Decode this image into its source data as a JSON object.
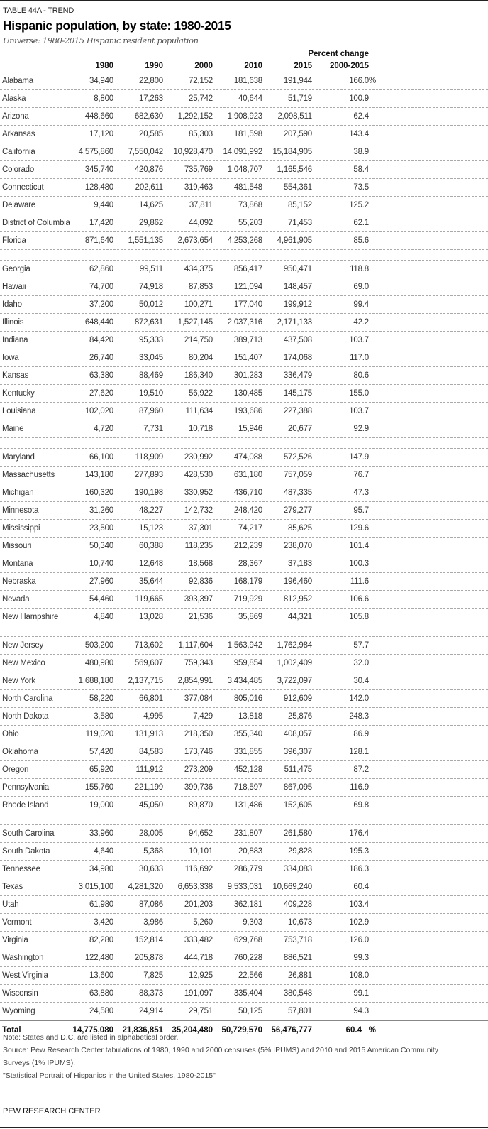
{
  "header": {
    "label": "TABLE 44A - TREND",
    "title": "Hispanic population, by state: 1980-2015",
    "subtitle": "Universe: 1980-2015 Hispanic resident population"
  },
  "columns": {
    "state": "",
    "years": [
      "1980",
      "1990",
      "2000",
      "2010",
      "2015"
    ],
    "pct_line1": "Percent change",
    "pct_line2": "2000-2015",
    "pct_unit": "%"
  },
  "groups": [
    [
      [
        "Alabama",
        "34,940",
        "22,800",
        "72,152",
        "181,638",
        "191,944",
        "166.0"
      ],
      [
        "Alaska",
        "8,800",
        "17,263",
        "25,742",
        "40,644",
        "51,719",
        "100.9"
      ],
      [
        "Arizona",
        "448,660",
        "682,630",
        "1,292,152",
        "1,908,923",
        "2,098,511",
        "62.4"
      ],
      [
        "Arkansas",
        "17,120",
        "20,585",
        "85,303",
        "181,598",
        "207,590",
        "143.4"
      ],
      [
        "California",
        "4,575,860",
        "7,550,042",
        "10,928,470",
        "14,091,992",
        "15,184,905",
        "38.9"
      ],
      [
        "Colorado",
        "345,740",
        "420,876",
        "735,769",
        "1,048,707",
        "1,165,546",
        "58.4"
      ],
      [
        "Connecticut",
        "128,480",
        "202,611",
        "319,463",
        "481,548",
        "554,361",
        "73.5"
      ],
      [
        "Delaware",
        "9,440",
        "14,625",
        "37,811",
        "73,868",
        "85,152",
        "125.2"
      ],
      [
        "District of Columbia",
        "17,420",
        "29,862",
        "44,092",
        "55,203",
        "71,453",
        "62.1"
      ],
      [
        "Florida",
        "871,640",
        "1,551,135",
        "2,673,654",
        "4,253,268",
        "4,961,905",
        "85.6"
      ]
    ],
    [
      [
        "Georgia",
        "62,860",
        "99,511",
        "434,375",
        "856,417",
        "950,471",
        "118.8"
      ],
      [
        "Hawaii",
        "74,700",
        "74,918",
        "87,853",
        "121,094",
        "148,457",
        "69.0"
      ],
      [
        "Idaho",
        "37,200",
        "50,012",
        "100,271",
        "177,040",
        "199,912",
        "99.4"
      ],
      [
        "Illinois",
        "648,440",
        "872,631",
        "1,527,145",
        "2,037,316",
        "2,171,133",
        "42.2"
      ],
      [
        "Indiana",
        "84,420",
        "95,333",
        "214,750",
        "389,713",
        "437,508",
        "103.7"
      ],
      [
        "Iowa",
        "26,740",
        "33,045",
        "80,204",
        "151,407",
        "174,068",
        "117.0"
      ],
      [
        "Kansas",
        "63,380",
        "88,469",
        "186,340",
        "301,283",
        "336,479",
        "80.6"
      ],
      [
        "Kentucky",
        "27,620",
        "19,510",
        "56,922",
        "130,485",
        "145,175",
        "155.0"
      ],
      [
        "Louisiana",
        "102,020",
        "87,960",
        "111,634",
        "193,686",
        "227,388",
        "103.7"
      ],
      [
        "Maine",
        "4,720",
        "7,731",
        "10,718",
        "15,946",
        "20,677",
        "92.9"
      ]
    ],
    [
      [
        "Maryland",
        "66,100",
        "118,909",
        "230,992",
        "474,088",
        "572,526",
        "147.9"
      ],
      [
        "Massachusetts",
        "143,180",
        "277,893",
        "428,530",
        "631,180",
        "757,059",
        "76.7"
      ],
      [
        "Michigan",
        "160,320",
        "190,198",
        "330,952",
        "436,710",
        "487,335",
        "47.3"
      ],
      [
        "Minnesota",
        "31,260",
        "48,227",
        "142,732",
        "248,420",
        "279,277",
        "95.7"
      ],
      [
        "Mississippi",
        "23,500",
        "15,123",
        "37,301",
        "74,217",
        "85,625",
        "129.6"
      ],
      [
        "Missouri",
        "50,340",
        "60,388",
        "118,235",
        "212,239",
        "238,070",
        "101.4"
      ],
      [
        "Montana",
        "10,740",
        "12,648",
        "18,568",
        "28,367",
        "37,183",
        "100.3"
      ],
      [
        "Nebraska",
        "27,960",
        "35,644",
        "92,836",
        "168,179",
        "196,460",
        "111.6"
      ],
      [
        "Nevada",
        "54,460",
        "119,665",
        "393,397",
        "719,929",
        "812,952",
        "106.6"
      ],
      [
        "New Hampshire",
        "4,840",
        "13,028",
        "21,536",
        "35,869",
        "44,321",
        "105.8"
      ]
    ],
    [
      [
        "New Jersey",
        "503,200",
        "713,602",
        "1,117,604",
        "1,563,942",
        "1,762,984",
        "57.7"
      ],
      [
        "New Mexico",
        "480,980",
        "569,607",
        "759,343",
        "959,854",
        "1,002,409",
        "32.0"
      ],
      [
        "New York",
        "1,688,180",
        "2,137,715",
        "2,854,991",
        "3,434,485",
        "3,722,097",
        "30.4"
      ],
      [
        "North Carolina",
        "58,220",
        "66,801",
        "377,084",
        "805,016",
        "912,609",
        "142.0"
      ],
      [
        "North Dakota",
        "3,580",
        "4,995",
        "7,429",
        "13,818",
        "25,876",
        "248.3"
      ],
      [
        "Ohio",
        "119,020",
        "131,913",
        "218,350",
        "355,340",
        "408,057",
        "86.9"
      ],
      [
        "Oklahoma",
        "57,420",
        "84,583",
        "173,746",
        "331,855",
        "396,307",
        "128.1"
      ],
      [
        "Oregon",
        "65,920",
        "111,912",
        "273,209",
        "452,128",
        "511,475",
        "87.2"
      ],
      [
        "Pennsylvania",
        "155,760",
        "221,199",
        "399,736",
        "718,597",
        "867,095",
        "116.9"
      ],
      [
        "Rhode Island",
        "19,000",
        "45,050",
        "89,870",
        "131,486",
        "152,605",
        "69.8"
      ]
    ],
    [
      [
        "South Carolina",
        "33,960",
        "28,005",
        "94,652",
        "231,807",
        "261,580",
        "176.4"
      ],
      [
        "South Dakota",
        "4,640",
        "5,368",
        "10,101",
        "20,883",
        "29,828",
        "195.3"
      ],
      [
        "Tennessee",
        "34,980",
        "30,633",
        "116,692",
        "286,779",
        "334,083",
        "186.3"
      ],
      [
        "Texas",
        "3,015,100",
        "4,281,320",
        "6,653,338",
        "9,533,031",
        "10,669,240",
        "60.4"
      ],
      [
        "Utah",
        "61,980",
        "87,086",
        "201,203",
        "362,181",
        "409,228",
        "103.4"
      ],
      [
        "Vermont",
        "3,420",
        "3,986",
        "5,260",
        "9,303",
        "10,673",
        "102.9"
      ],
      [
        "Virginia",
        "82,280",
        "152,814",
        "333,482",
        "629,768",
        "753,718",
        "126.0"
      ],
      [
        "Washington",
        "122,480",
        "205,878",
        "444,718",
        "760,228",
        "886,521",
        "99.3"
      ],
      [
        "West Virginia",
        "13,600",
        "7,825",
        "12,925",
        "22,566",
        "26,881",
        "108.0"
      ],
      [
        "Wisconsin",
        "63,880",
        "88,373",
        "191,097",
        "335,404",
        "380,548",
        "99.1"
      ],
      [
        "Wyoming",
        "24,580",
        "24,914",
        "29,751",
        "50,125",
        "57,801",
        "94.3"
      ]
    ]
  ],
  "total": [
    "Total",
    "14,775,080",
    "21,836,851",
    "35,204,480",
    "50,729,570",
    "56,476,777",
    "60.4"
  ],
  "notes": {
    "note": "Note: States and D.C. are listed in alphabetical order.",
    "source": "Source: Pew Research Center tabulations of 1980, 1990 and 2000 censuses (5% IPUMS) and 2010 and 2015 American Community Surveys (1% IPUMS).",
    "report": "\"Statistical Portrait of Hispanics in the United States, 1980-2015\""
  },
  "brand": "PEW RESEARCH CENTER"
}
